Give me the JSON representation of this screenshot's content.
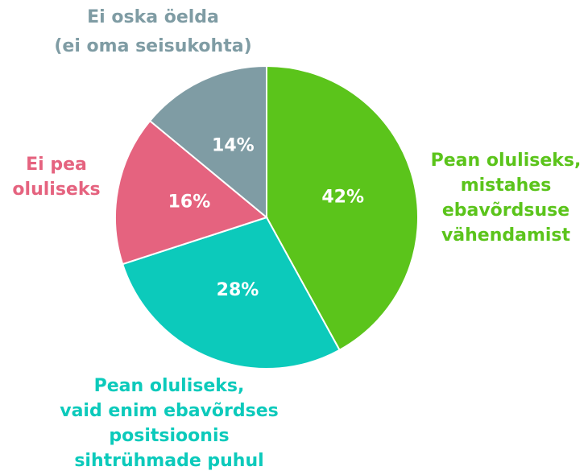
{
  "chart_data": {
    "type": "pie",
    "categories": [
      [
        "Pean oluliseks,",
        "mistahes",
        "ebavõrdsuse",
        "vähendamist"
      ],
      [
        "Pean oluliseks,",
        "vaid enim ebavõrdses",
        "positsioonis",
        "sihtrühmade puhul"
      ],
      [
        "Ei pea",
        "oluliseks"
      ],
      [
        "Ei oska öelda",
        "(ei oma seisukohta)"
      ]
    ],
    "values": [
      42,
      28,
      16,
      14
    ],
    "value_labels": [
      "42%",
      "28%",
      "16%",
      "14%"
    ],
    "colors": [
      "#5bc41b",
      "#0ccabb",
      "#e5637f",
      "#7f9ca4"
    ]
  }
}
